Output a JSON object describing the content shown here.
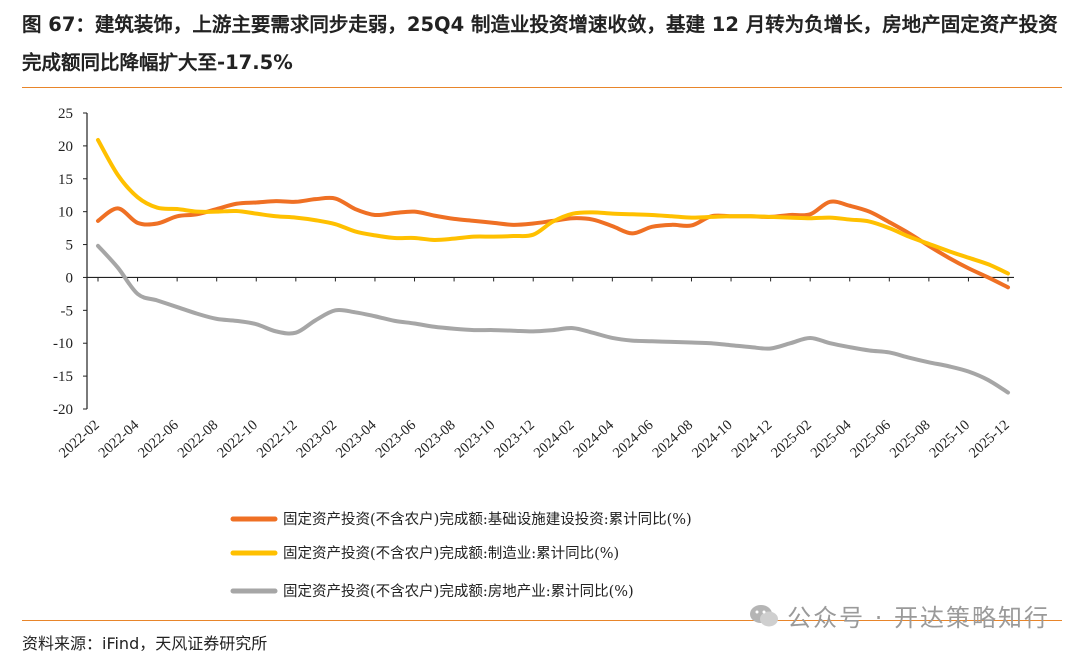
{
  "figure": {
    "title": "图 67：建筑装饰，上游主要需求同步走弱，25Q4 制造业投资增速收敛，基建 12 月转为负增长，房地产固定资产投资完成额同比降幅扩大至-17.5%",
    "source": "资料来源：iFind，天风证券研究所",
    "watermark": "公众号 · 开达策略知行"
  },
  "colors": {
    "infra": "#ef7024",
    "manufacturing": "#ffc000",
    "realestate": "#a6a6a6",
    "accent_rule": "#e8852a"
  },
  "chart_data": {
    "type": "line",
    "title": "",
    "xlabel": "",
    "ylabel": "",
    "ylim": [
      -20,
      25
    ],
    "yticks": [
      25,
      20,
      15,
      10,
      5,
      0,
      -5,
      -10,
      -15,
      -20
    ],
    "categories": [
      "2022-02",
      "2022-03",
      "2022-04",
      "2022-05",
      "2022-06",
      "2022-07",
      "2022-08",
      "2022-09",
      "2022-10",
      "2022-11",
      "2022-12",
      "2023-01",
      "2023-02",
      "2023-03",
      "2023-04",
      "2023-05",
      "2023-06",
      "2023-07",
      "2023-08",
      "2023-09",
      "2023-10",
      "2023-11",
      "2023-12",
      "2024-01",
      "2024-02",
      "2024-03",
      "2024-04",
      "2024-05",
      "2024-06",
      "2024-07",
      "2024-08",
      "2024-09",
      "2024-10",
      "2024-11",
      "2024-12",
      "2025-01",
      "2025-02",
      "2025-03",
      "2025-04",
      "2025-05",
      "2025-06",
      "2025-07",
      "2025-08",
      "2025-09",
      "2025-10",
      "2025-11",
      "2025-12"
    ],
    "xtick_labels": [
      "2022-02",
      "2022-04",
      "2022-06",
      "2022-08",
      "2022-10",
      "2022-12",
      "2023-02",
      "2023-04",
      "2023-06",
      "2023-08",
      "2023-10",
      "2023-12",
      "2024-02",
      "2024-04",
      "2024-06",
      "2024-08",
      "2024-10",
      "2024-12",
      "2025-02",
      "2025-04",
      "2025-06",
      "2025-08",
      "2025-10",
      "2025-12"
    ],
    "series": [
      {
        "name": "固定资产投资(不含农户)完成额:基础设施建设投资:累计同比(%)",
        "key": "infra",
        "values": [
          8.6,
          10.5,
          8.3,
          8.2,
          9.3,
          9.6,
          10.4,
          11.2,
          11.4,
          11.6,
          11.5,
          11.9,
          12.0,
          10.4,
          9.5,
          9.8,
          10.0,
          9.4,
          8.9,
          8.6,
          8.3,
          8.0,
          8.2,
          8.6,
          9.0,
          8.8,
          7.8,
          6.7,
          7.7,
          8.0,
          7.9,
          9.3,
          9.3,
          9.3,
          9.2,
          9.5,
          9.6,
          11.5,
          10.9,
          10.0,
          8.4,
          6.7,
          4.8,
          3.0,
          1.4,
          0.0,
          -1.5
        ]
      },
      {
        "name": "固定资产投资(不含农户)完成额:制造业:累计同比(%)",
        "key": "manufacturing",
        "values": [
          20.9,
          15.6,
          12.2,
          10.6,
          10.4,
          10.0,
          10.0,
          10.1,
          9.7,
          9.3,
          9.1,
          8.7,
          8.1,
          7.0,
          6.4,
          6.0,
          6.0,
          5.7,
          5.9,
          6.2,
          6.2,
          6.3,
          6.5,
          8.5,
          9.7,
          9.9,
          9.7,
          9.6,
          9.5,
          9.3,
          9.1,
          9.2,
          9.3,
          9.3,
          9.2,
          9.1,
          9.0,
          9.1,
          8.8,
          8.5,
          7.5,
          6.2,
          5.1,
          4.0,
          3.0,
          2.0,
          0.6
        ]
      },
      {
        "name": "固定资产投资(不含农户)完成额:房地产业:累计同比(%)",
        "key": "realestate",
        "values": [
          4.8,
          1.5,
          -2.5,
          -3.5,
          -4.5,
          -5.5,
          -6.3,
          -6.6,
          -7.1,
          -8.2,
          -8.4,
          -6.5,
          -5.0,
          -5.3,
          -5.9,
          -6.6,
          -7.0,
          -7.5,
          -7.8,
          -8.0,
          -8.0,
          -8.1,
          -8.2,
          -8.0,
          -7.7,
          -8.4,
          -9.2,
          -9.6,
          -9.7,
          -9.8,
          -9.9,
          -10.0,
          -10.3,
          -10.6,
          -10.8,
          -10.0,
          -9.2,
          -10.0,
          -10.6,
          -11.1,
          -11.4,
          -12.2,
          -12.9,
          -13.5,
          -14.3,
          -15.6,
          -17.5
        ]
      }
    ],
    "legend_position": "bottom-center",
    "grid": false
  }
}
